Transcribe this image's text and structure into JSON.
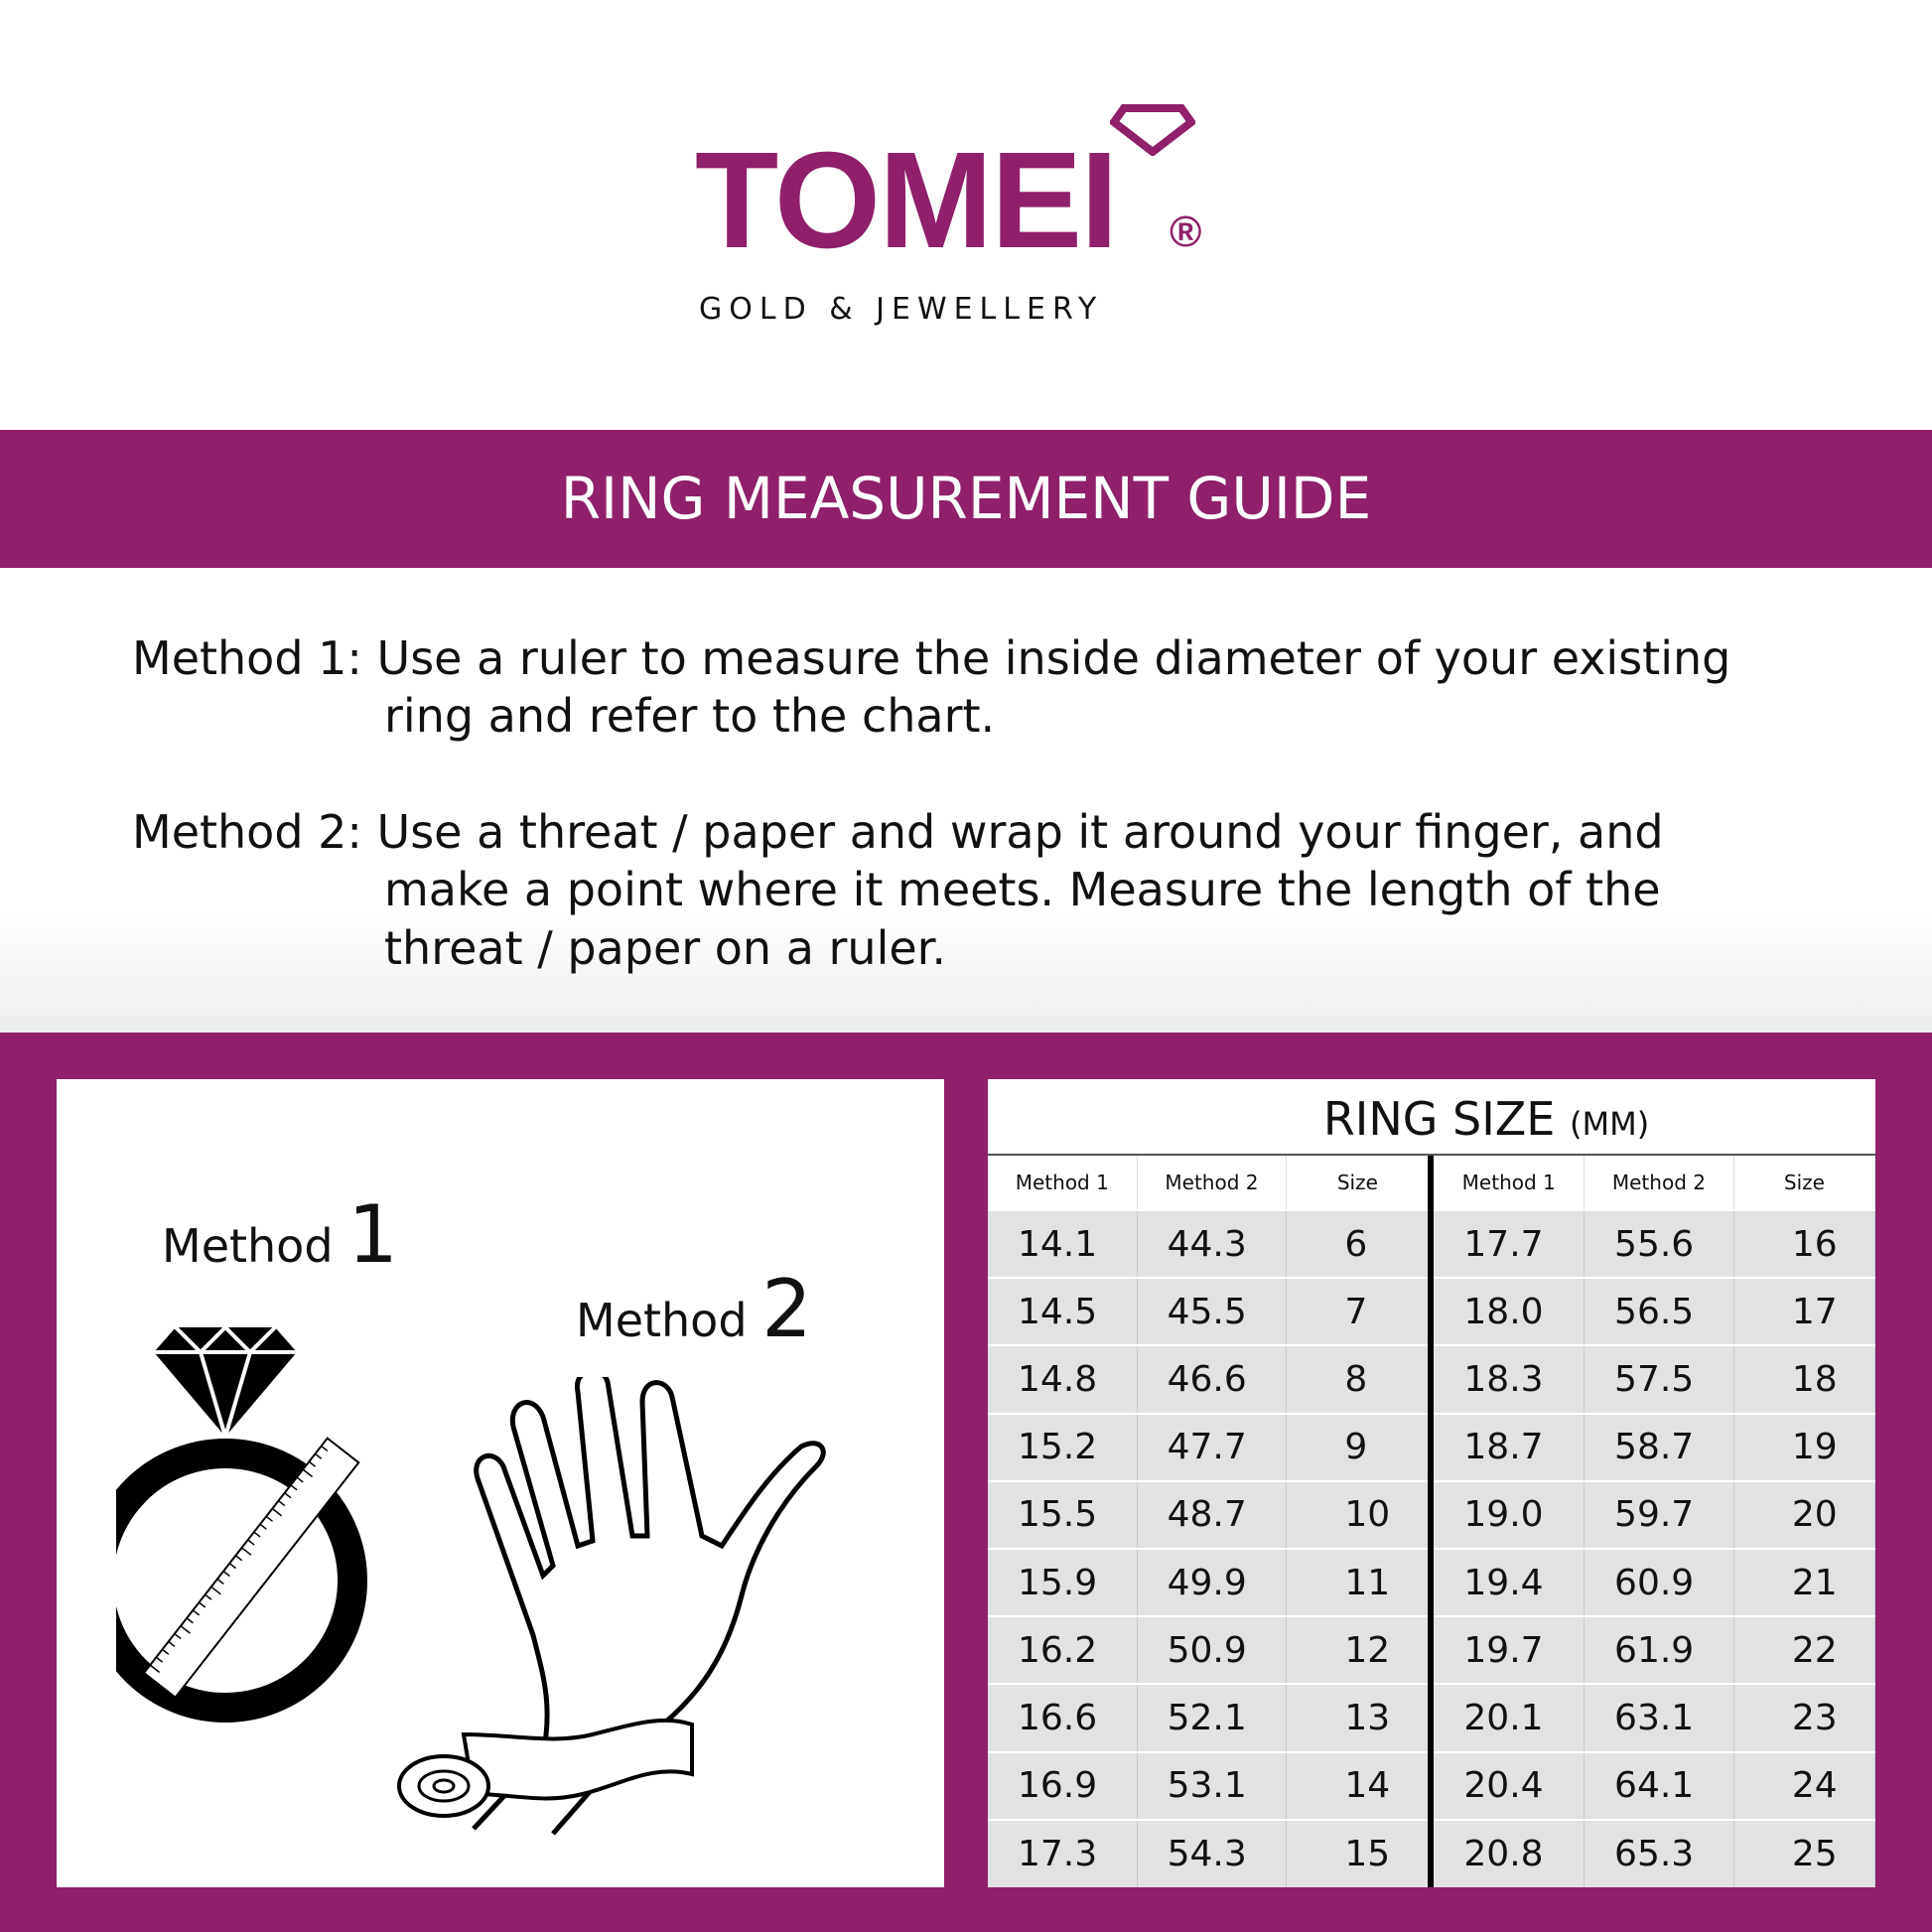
{
  "brand": {
    "name": "TOMEI",
    "registered": "®",
    "tagline": "GOLD & JEWELLERY",
    "color": "#8f2069"
  },
  "title": "RING MEASUREMENT GUIDE",
  "methods": [
    {
      "label": "Method 1:",
      "lines": [
        "Use a ruler to measure the inside diameter of your existing",
        "ring and refer to the chart."
      ]
    },
    {
      "label": "Method 2:",
      "lines": [
        "Use a threat / paper and wrap it around your finger, and",
        "make a point where it meets. Measure the length of the",
        "threat / paper on a ruler."
      ]
    }
  ],
  "illustrations": {
    "method1_label": "Method",
    "method1_num": "1",
    "method2_label": "Method",
    "method2_num": "2"
  },
  "table": {
    "title": "RING SIZE",
    "unit": "(MM)",
    "headers": [
      "Method 1",
      "Method 2",
      "Size",
      "Method 1",
      "Method 2",
      "Size"
    ],
    "rows": [
      [
        "14.1",
        "44.3",
        "6",
        "17.7",
        "55.6",
        "16"
      ],
      [
        "14.5",
        "45.5",
        "7",
        "18.0",
        "56.5",
        "17"
      ],
      [
        "14.8",
        "46.6",
        "8",
        "18.3",
        "57.5",
        "18"
      ],
      [
        "15.2",
        "47.7",
        "9",
        "18.7",
        "58.7",
        "19"
      ],
      [
        "15.5",
        "48.7",
        "10",
        "19.0",
        "59.7",
        "20"
      ],
      [
        "15.9",
        "49.9",
        "11",
        "19.4",
        "60.9",
        "21"
      ],
      [
        "16.2",
        "50.9",
        "12",
        "19.7",
        "61.9",
        "22"
      ],
      [
        "16.6",
        "52.1",
        "13",
        "20.1",
        "63.1",
        "23"
      ],
      [
        "16.9",
        "53.1",
        "14",
        "20.4",
        "64.1",
        "24"
      ],
      [
        "17.3",
        "54.3",
        "15",
        "20.8",
        "65.3",
        "25"
      ]
    ]
  }
}
